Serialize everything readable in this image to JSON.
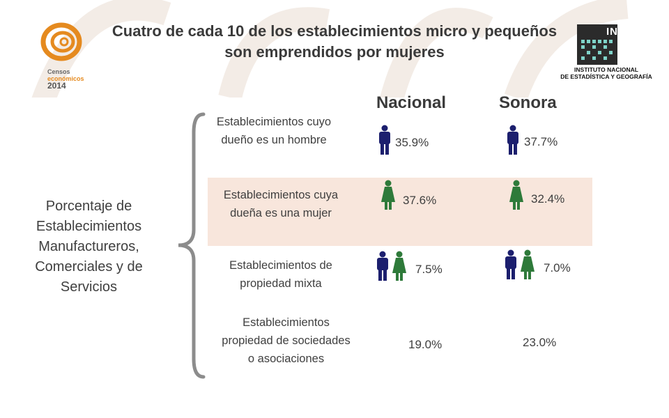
{
  "title": "Cuatro de cada 10 de los establecimientos micro y pequeños son emprendidos por mujeres",
  "logos": {
    "censos": {
      "line1": "Censos",
      "line2": "económicos",
      "line3": "2014"
    },
    "inegi": {
      "name": "INEGI",
      "subtitle_line1": "INSTITUTO NACIONAL",
      "subtitle_line2": "DE ESTADÍSTICA Y GEOGRAFÍA"
    }
  },
  "columns": {
    "nacional": "Nacional",
    "sonora": "Sonora"
  },
  "side_label": "Porcentaje de Establecimientos Manufactureros, Comerciales y de Servicios",
  "rows": [
    {
      "label": "Establecimientos cuyo dueño es un hombre",
      "nacional": "35.9%",
      "sonora": "37.7%",
      "icon": "man-icon"
    },
    {
      "label": "Establecimientos cuya dueña es una mujer",
      "nacional": "37.6%",
      "sonora": "32.4%",
      "icon": "woman-icon"
    },
    {
      "label": "Establecimientos de propiedad mixta",
      "nacional": "7.5%",
      "sonora": "7.0%",
      "icon": "man-woman-icon"
    },
    {
      "label": "Establecimientos propiedad de sociedades o asociaciones",
      "nacional": "19.0%",
      "sonora": "23.0%",
      "icon": ""
    }
  ],
  "colors": {
    "man": "#1c1f6e",
    "woman": "#2e7a3a",
    "band": "#f8e6dc",
    "brace": "#8c8c8c",
    "accent": "#e58a1f"
  }
}
